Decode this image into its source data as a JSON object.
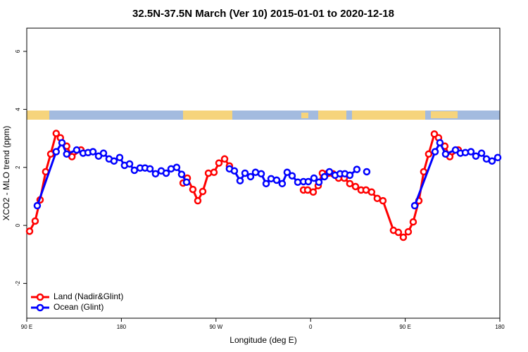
{
  "chart_data": {
    "type": "line",
    "title": "32.5N-37.5N March (Ver 10)   2015-01-01 to 2020-12-18",
    "xlabel": "Longitude (deg E)",
    "ylabel": "XCO2 - MLO trend (ppm)",
    "xlim": [
      90,
      540
    ],
    "ylim": [
      -3.2,
      6.8
    ],
    "xticks": [
      {
        "value": 90,
        "label": "90 E"
      },
      180,
      {
        "value": 270,
        "label": "90 W"
      },
      {
        "value": 360,
        "label": "0"
      },
      {
        "value": 450,
        "label": "90 E"
      },
      {
        "value": 540,
        "label": "180"
      }
    ],
    "yticks": [
      -2,
      0,
      2,
      4,
      6
    ],
    "legend": "bottom-left",
    "series": [
      {
        "name": "Land (Nadir&Glint)",
        "color": "#ff0000",
        "x": [
          92.7,
          98,
          102.7,
          108,
          112.8,
          118,
          122,
          128,
          133,
          141.6,
          null,
          238.7,
          242.7,
          248,
          252.7,
          257.4,
          262.8,
          268.1,
          272.8,
          278.2,
          282.8,
          null,
          353.2,
          357.2,
          362.5,
          367.2,
          371.2,
          376.6,
          381.3,
          386.6,
          392,
          397.3,
          402.7,
          408,
          412.7,
          418,
          423.4,
          428.8,
          438.8,
          443.5,
          448.2,
          452.9,
          457.6,
          463,
          467.6,
          472.3,
          477.7,
          481.7,
          487.7,
          492.4,
          500.5
        ],
        "values": [
          -0.2,
          0.15,
          0.88,
          1.85,
          2.46,
          3.17,
          3.02,
          2.73,
          2.37,
          2.6,
          null,
          1.46,
          1.63,
          1.24,
          0.85,
          1.17,
          1.8,
          1.83,
          2.15,
          2.29,
          2.05,
          null,
          1.22,
          1.22,
          1.15,
          1.37,
          1.8,
          1.8,
          1.78,
          1.63,
          1.63,
          1.44,
          1.34,
          1.22,
          1.22,
          1.15,
          0.93,
          0.85,
          -0.17,
          -0.24,
          -0.41,
          -0.22,
          0.12,
          0.85,
          1.85,
          2.46,
          3.15,
          3.02,
          2.73,
          2.37,
          2.6
        ]
      },
      {
        "name": "Ocean (Glint)",
        "color": "#0000ff",
        "x": [
          100,
          118,
          123.5,
          128,
          137.5,
          143.6,
          148.3,
          153,
          158.3,
          163,
          168.3,
          173,
          178.4,
          183,
          187.8,
          192.4,
          197.8,
          202.5,
          207.2,
          212.5,
          217.9,
          222.6,
          227.3,
          232.6,
          237.3,
          242,
          null,
          282.8,
          287.5,
          292.9,
          297.6,
          302.9,
          307.6,
          313,
          317.7,
          322.4,
          327.7,
          333,
          337.7,
          342.4,
          347.8,
          353.2,
          357.8,
          363.2,
          367.9,
          373.2,
          377.9,
          383.3,
          388,
          392.6,
          397.3,
          404,
          null,
          413.4,
          null,
          459,
          478.4,
          483,
          488.4,
          497.8,
          502.5,
          507.2,
          512.5,
          517.2,
          522.6,
          527.3,
          532.6,
          538
        ],
        "values": [
          0.68,
          2.54,
          2.85,
          2.46,
          2.6,
          2.49,
          2.51,
          2.54,
          2.39,
          2.49,
          2.29,
          2.22,
          2.34,
          2.07,
          2.12,
          1.9,
          1.98,
          1.98,
          1.95,
          1.78,
          1.88,
          1.8,
          1.95,
          2.0,
          1.76,
          1.49,
          null,
          1.95,
          1.88,
          1.54,
          1.8,
          1.68,
          1.83,
          1.78,
          1.44,
          1.61,
          1.56,
          1.44,
          1.83,
          1.71,
          1.49,
          1.51,
          1.51,
          1.63,
          1.49,
          1.68,
          1.85,
          1.73,
          1.78,
          1.78,
          1.73,
          1.93,
          null,
          1.85,
          null,
          0.68,
          2.54,
          2.85,
          2.46,
          2.6,
          2.49,
          2.51,
          2.54,
          2.39,
          2.49,
          2.29,
          2.22,
          2.34
        ]
      }
    ]
  }
}
